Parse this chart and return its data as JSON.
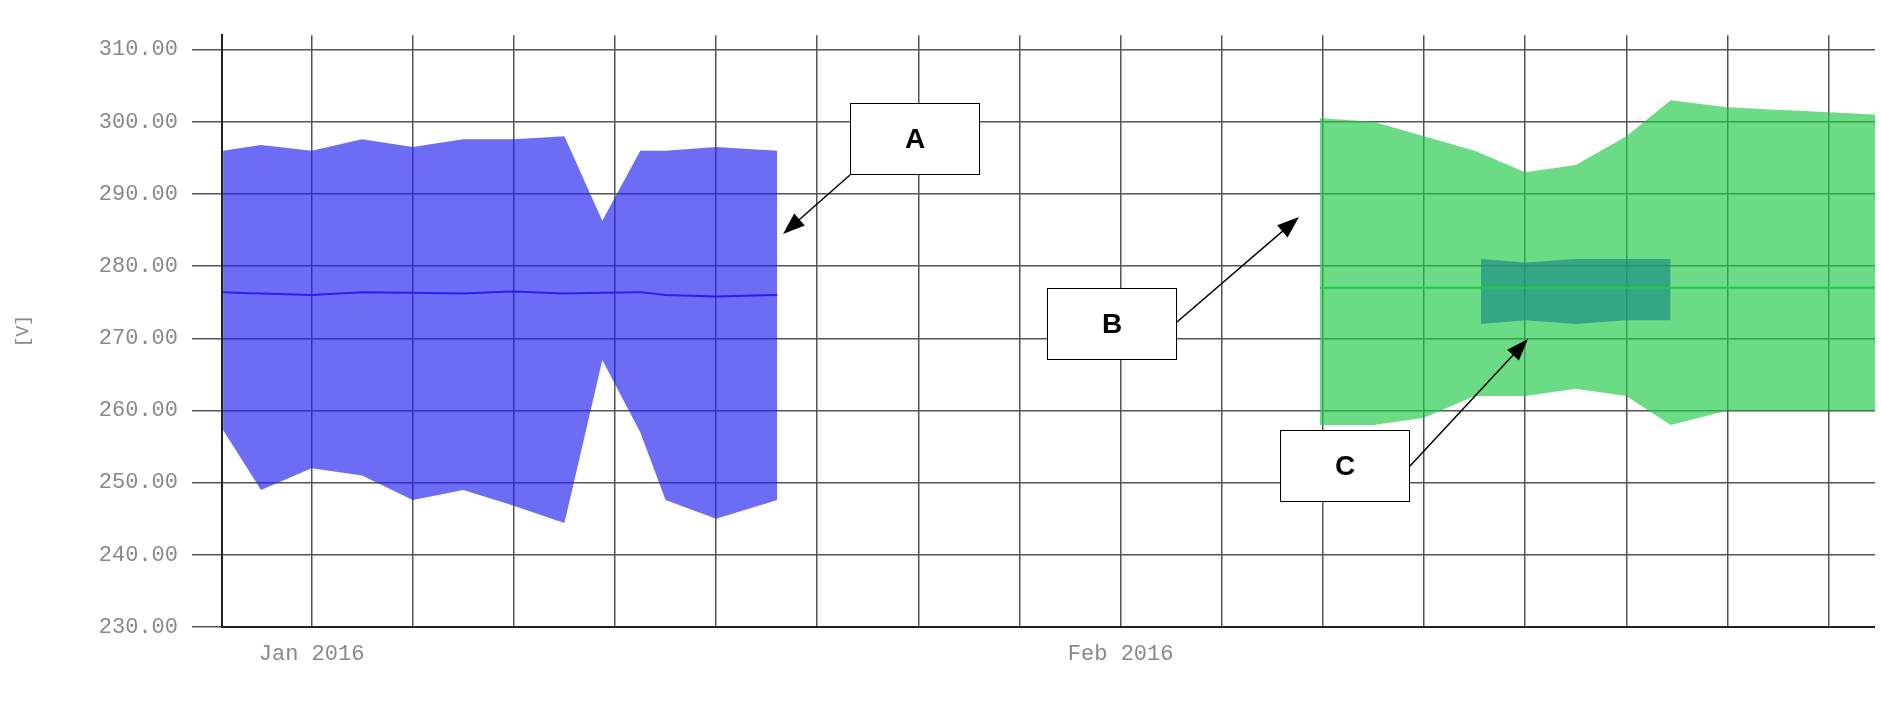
{
  "chart_data": {
    "type": "line",
    "ylabel": "[V]",
    "ylim": [
      230,
      312
    ],
    "yticks": [
      {
        "value": 230,
        "label": "230.00"
      },
      {
        "value": 240,
        "label": "240.00"
      },
      {
        "value": 250,
        "label": "250.00"
      },
      {
        "value": 260,
        "label": "260.00"
      },
      {
        "value": 270,
        "label": "270.00"
      },
      {
        "value": 280,
        "label": "280.00"
      },
      {
        "value": 290,
        "label": "290.00"
      },
      {
        "value": 300,
        "label": "300.00"
      },
      {
        "value": 310,
        "label": "310.00"
      }
    ],
    "xlim": [
      "2016-01-28T05:30",
      "2016-02-29T22:00"
    ],
    "xticks": [
      {
        "value": "2016-01-30",
        "label": "Jan 2016"
      },
      {
        "value": "2016-02-01",
        "label": null
      },
      {
        "value": "2016-02-03",
        "label": null
      },
      {
        "value": "2016-02-05",
        "label": null
      },
      {
        "value": "2016-02-07",
        "label": null
      },
      {
        "value": "2016-02-09",
        "label": null
      },
      {
        "value": "2016-02-11",
        "label": null
      },
      {
        "value": "2016-02-13",
        "label": null
      },
      {
        "value": "2016-02-15",
        "label": "Feb 2016"
      },
      {
        "value": "2016-02-17",
        "label": null
      },
      {
        "value": "2016-02-19",
        "label": null
      },
      {
        "value": "2016-02-21",
        "label": null
      },
      {
        "value": "2016-02-23",
        "label": null
      },
      {
        "value": "2016-02-25",
        "label": null
      },
      {
        "value": "2016-02-27",
        "label": null
      },
      {
        "value": "2016-02-29",
        "label": null
      }
    ],
    "grid": true,
    "legend": false,
    "series": [
      {
        "color": "#2222f0",
        "x": [
          "2016-01-28T06:00",
          "2016-01-29",
          "2016-01-30",
          "2016-01-31",
          "2016-02-01",
          "2016-02-02",
          "2016-02-03",
          "2016-02-04",
          "2016-02-04T18:00",
          "2016-02-05T12:00",
          "2016-02-06",
          "2016-02-07",
          "2016-02-08T05:00"
        ],
        "values": [
          276.4,
          276.2,
          276.0,
          276.4,
          276.3,
          276.2,
          276.5,
          276.2,
          276.3,
          276.4,
          276.0,
          275.8,
          276.0
        ],
        "upper": [
          296,
          296.8,
          296,
          297.6,
          296.5,
          297.6,
          297.6,
          298,
          286.3,
          296,
          296,
          296.5,
          296
        ],
        "lower": [
          257.3,
          249,
          252,
          251,
          247.6,
          249,
          246.8,
          244.4,
          267,
          257,
          247.6,
          245,
          247.6
        ]
      },
      {
        "color": "#22c94a",
        "x": [
          "2016-02-18T22:30",
          "2016-02-20",
          "2016-02-21",
          "2016-02-22",
          "2016-02-23",
          "2016-02-24",
          "2016-02-25",
          "2016-02-25T21:00",
          "2016-02-27",
          "2016-02-29T22:00"
        ],
        "values": [
          277,
          277,
          277,
          277,
          277,
          277,
          277,
          277,
          277,
          277
        ],
        "upper": [
          300.5,
          300,
          298,
          296,
          293,
          294,
          298,
          303,
          302,
          301
        ],
        "lower": [
          258,
          258,
          259,
          262,
          262,
          263,
          262,
          258,
          260,
          260
        ]
      },
      {
        "color": "#0a14f0",
        "x": [
          "2016-02-22T03:00",
          "2016-02-23",
          "2016-02-24",
          "2016-02-25",
          "2016-02-25T21:00"
        ],
        "values": [
          null,
          null,
          null,
          null,
          null
        ],
        "upper": [
          281,
          280.5,
          281,
          281,
          281
        ],
        "lower": [
          272,
          272.5,
          272,
          272.5,
          272.5
        ]
      }
    ],
    "annotations": [
      "A",
      "B",
      "C"
    ]
  }
}
